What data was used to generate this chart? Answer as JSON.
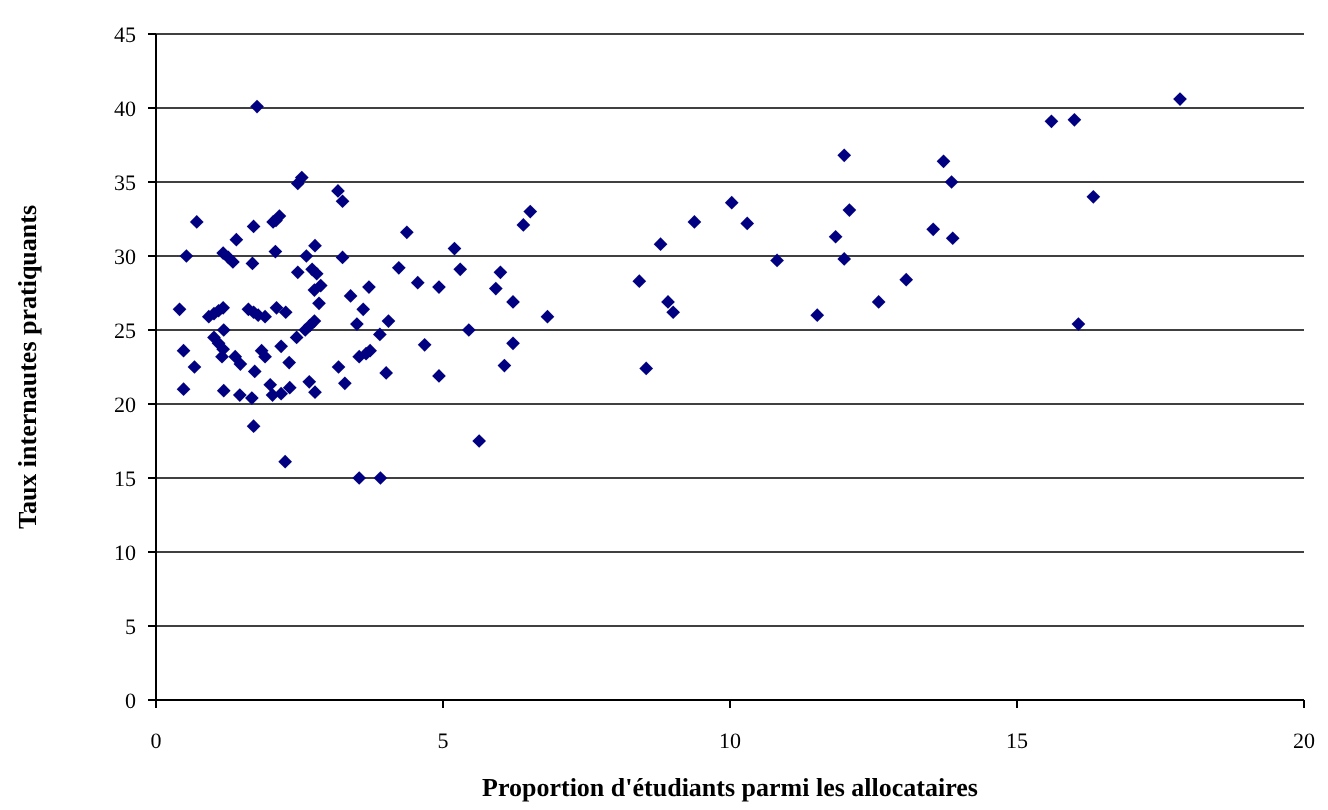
{
  "chart_data": {
    "type": "scatter",
    "xlabel": "Proportion d'étudiants parmi les allocataires",
    "ylabel": "Taux internautes pratiquants",
    "xlim": [
      0,
      20
    ],
    "xticks": [
      0,
      5,
      10,
      15,
      20
    ],
    "ylim": [
      0,
      45
    ],
    "yticks": [
      0,
      5,
      10,
      15,
      20,
      25,
      30,
      35,
      40,
      45
    ],
    "grid": "y",
    "marker": "diamond",
    "series": [
      {
        "color": "#000080",
        "x": [
          1.76,
          2.54,
          2.47,
          3.17,
          3.25,
          0.71,
          2.15,
          2.09,
          2.04,
          1.7,
          1.4,
          4.37,
          2.77,
          0.53,
          1.17,
          1.26,
          1.34,
          2.08,
          2.62,
          3.25,
          1.68,
          4.23,
          2.47,
          2.72,
          2.8,
          2.87,
          2.76,
          3.39,
          3.71,
          2.84,
          3.61,
          0.41,
          0.92,
          1.01,
          1.09,
          1.17,
          1.61,
          1.7,
          1.78,
          1.9,
          2.1,
          2.26,
          2.76,
          2.68,
          2.6,
          3.5,
          4.05,
          3.9,
          2.45,
          1.18,
          1.01,
          1.09,
          1.17,
          1.15,
          0.48,
          1.38,
          1.47,
          1.84,
          1.9,
          2.18,
          2.32,
          1.72,
          3.73,
          3.66,
          3.54,
          3.18,
          4.01,
          0.67,
          0.48,
          1.18,
          1.46,
          1.67,
          1.99,
          2.03,
          2.18,
          2.33,
          2.67,
          2.77,
          3.29,
          1.7,
          2.25,
          3.54,
          3.91,
          6.52,
          6.4,
          5.2,
          4.56,
          4.93,
          5.3,
          6.0,
          5.92,
          6.22,
          6.82,
          4.68,
          5.45,
          6.22,
          4.93,
          6.07,
          5.63,
          17.84,
          15.6,
          16.0,
          11.99,
          13.72,
          13.86,
          16.33,
          10.03,
          12.08,
          9.38,
          10.3,
          8.79,
          11.84,
          13.54,
          13.88,
          10.82,
          11.99,
          8.42,
          13.07,
          8.92,
          9.01,
          12.59,
          11.52,
          16.07,
          8.54
        ],
        "values": [
          40.1,
          35.3,
          34.9,
          34.4,
          33.7,
          32.3,
          32.7,
          32.4,
          32.3,
          32.0,
          31.1,
          31.6,
          30.7,
          30.0,
          30.2,
          29.9,
          29.6,
          30.3,
          30.0,
          29.9,
          29.5,
          29.2,
          28.9,
          29.1,
          28.8,
          28.0,
          27.7,
          27.3,
          27.9,
          26.8,
          26.4,
          26.4,
          25.9,
          26.1,
          26.3,
          26.5,
          26.4,
          26.2,
          26.0,
          25.9,
          26.5,
          26.2,
          25.6,
          25.3,
          25.0,
          25.4,
          25.6,
          24.7,
          24.5,
          25.0,
          24.5,
          24.1,
          23.7,
          23.2,
          23.6,
          23.2,
          22.7,
          23.6,
          23.2,
          23.9,
          22.8,
          22.2,
          23.6,
          23.4,
          23.2,
          22.5,
          22.1,
          22.5,
          21.0,
          20.9,
          20.6,
          20.4,
          21.3,
          20.6,
          20.7,
          21.1,
          21.5,
          20.8,
          21.4,
          18.5,
          16.1,
          15.0,
          15.0,
          33.0,
          32.1,
          30.5,
          28.2,
          27.9,
          29.1,
          28.9,
          27.8,
          26.9,
          25.9,
          24.0,
          25.0,
          24.1,
          21.9,
          22.6,
          17.5,
          40.6,
          39.1,
          39.2,
          36.8,
          36.4,
          35.0,
          34.0,
          33.6,
          33.1,
          32.3,
          32.2,
          30.8,
          31.3,
          31.8,
          31.2,
          29.7,
          29.8,
          28.3,
          28.4,
          26.9,
          26.2,
          26.9,
          26.0,
          25.4,
          22.4
        ]
      }
    ]
  }
}
